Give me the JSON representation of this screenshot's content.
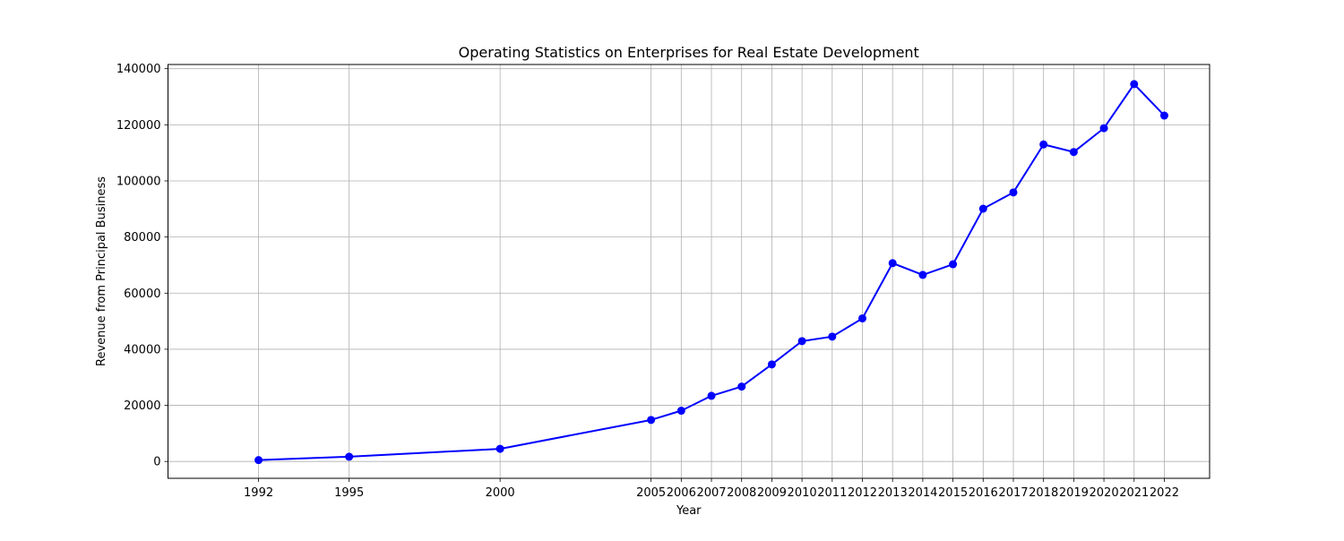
{
  "chart_data": {
    "type": "line",
    "title": "Operating Statistics on Enterprises for Real Estate Development",
    "xlabel": "Year",
    "ylabel": "Revenue from Principal Business",
    "x": [
      1992,
      1995,
      2000,
      2005,
      2006,
      2007,
      2008,
      2009,
      2010,
      2011,
      2012,
      2013,
      2014,
      2015,
      2016,
      2017,
      2018,
      2019,
      2020,
      2021,
      2022
    ],
    "x_tick_labels": [
      "1992",
      "1995",
      "2000",
      "2005",
      "2006",
      "2007",
      "2008",
      "2009",
      "2010",
      "2011",
      "2012",
      "2013",
      "2014",
      "2015",
      "2016",
      "2017",
      "2018",
      "2019",
      "2020",
      "2021",
      "2022"
    ],
    "series": [
      {
        "values": [
          500,
          1700,
          4500,
          14800,
          18100,
          23400,
          26700,
          34600,
          42900,
          44500,
          51000,
          70700,
          66500,
          70300,
          90100,
          95900,
          113000,
          110300,
          118800,
          134500,
          123300
        ],
        "color": "#0000ff",
        "marker": "circle"
      }
    ],
    "xlim": [
      1989,
      2023.5
    ],
    "ylim": [
      -6000,
      141500
    ],
    "y_ticks": [
      0,
      20000,
      40000,
      60000,
      80000,
      100000,
      120000,
      140000
    ],
    "y_tick_labels": [
      "0",
      "20000",
      "40000",
      "60000",
      "80000",
      "100000",
      "120000",
      "140000"
    ],
    "grid": true,
    "grid_color": "#b0b0b0"
  }
}
